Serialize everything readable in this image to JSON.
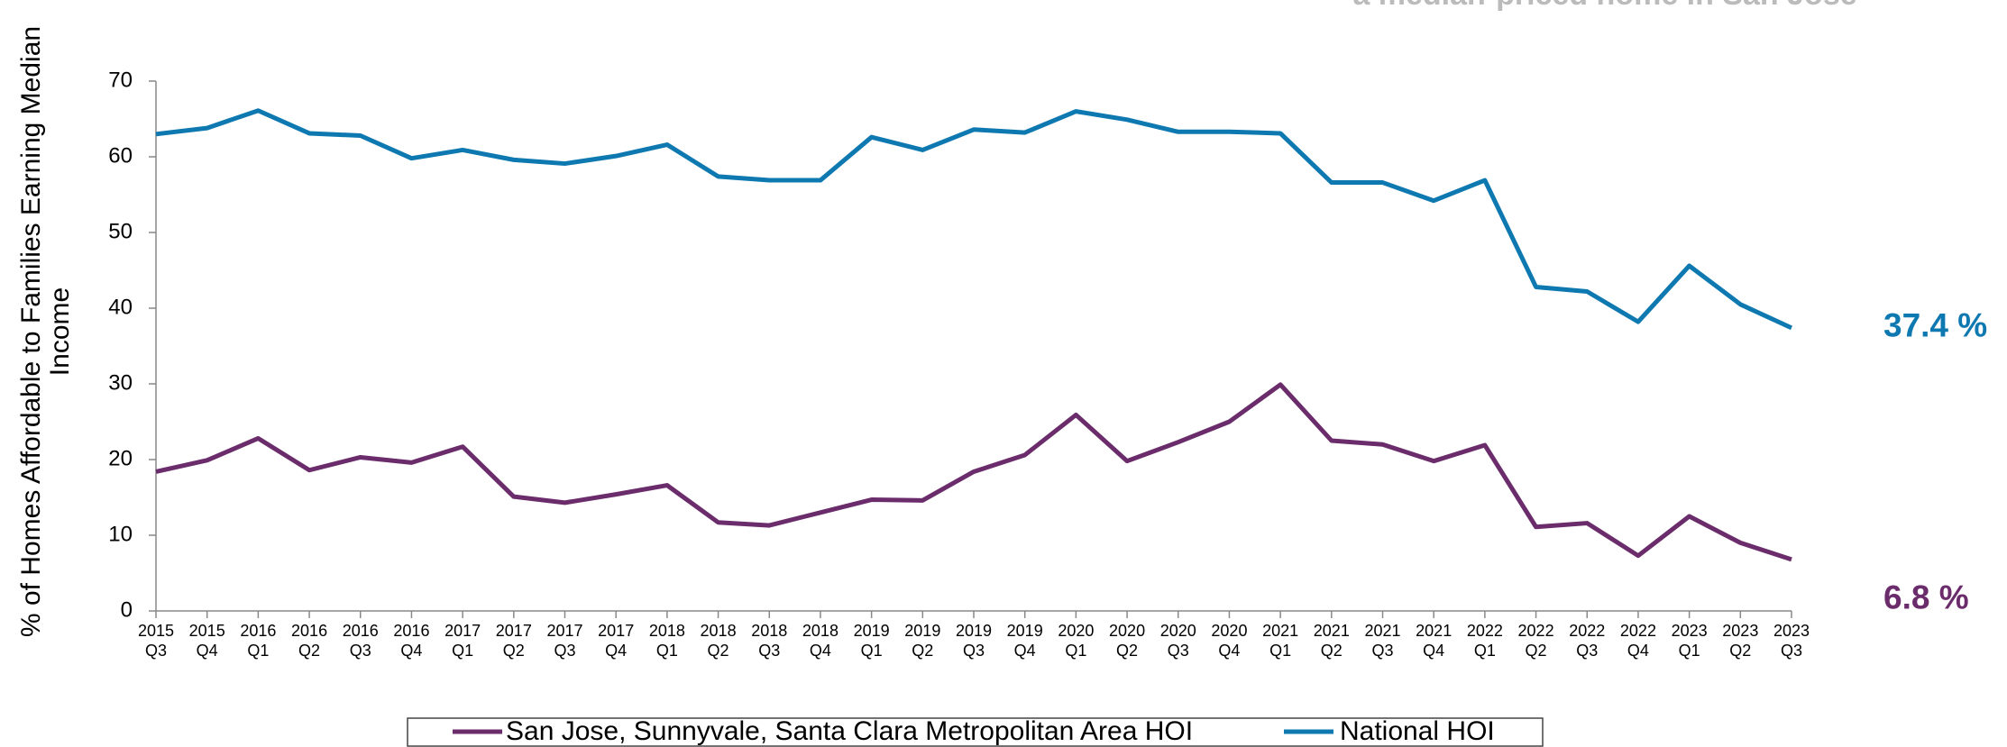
{
  "chart_data": {
    "type": "line",
    "annotation": "a median-priced home in San Jose",
    "ylabel": [
      "% of Homes Affordable to Families Earning Median",
      "Income"
    ],
    "categories": [
      [
        "2015",
        "Q3"
      ],
      [
        "2015",
        "Q4"
      ],
      [
        "2016",
        "Q1"
      ],
      [
        "2016",
        "Q2"
      ],
      [
        "2016",
        "Q3"
      ],
      [
        "2016",
        "Q4"
      ],
      [
        "2017",
        "Q1"
      ],
      [
        "2017",
        "Q2"
      ],
      [
        "2017",
        "Q3"
      ],
      [
        "2017",
        "Q4"
      ],
      [
        "2018",
        "Q1"
      ],
      [
        "2018",
        "Q2"
      ],
      [
        "2018",
        "Q3"
      ],
      [
        "2018",
        "Q4"
      ],
      [
        "2019",
        "Q1"
      ],
      [
        "2019",
        "Q2"
      ],
      [
        "2019",
        "Q3"
      ],
      [
        "2019",
        "Q4"
      ],
      [
        "2020",
        "Q1"
      ],
      [
        "2020",
        "Q2"
      ],
      [
        "2020",
        "Q3"
      ],
      [
        "2020",
        "Q4"
      ],
      [
        "2021",
        "Q1"
      ],
      [
        "2021",
        "Q2"
      ],
      [
        "2021",
        "Q3"
      ],
      [
        "2021",
        "Q4"
      ],
      [
        "2022",
        "Q1"
      ],
      [
        "2022",
        "Q2"
      ],
      [
        "2022",
        "Q3"
      ],
      [
        "2022",
        "Q4"
      ],
      [
        "2023",
        "Q1"
      ],
      [
        "2023",
        "Q2"
      ],
      [
        "2023",
        "Q3"
      ]
    ],
    "series": [
      {
        "name": "San Jose, Sunnyvale, Santa Clara Metropolitan Area HOI",
        "color": "#6b2c6b",
        "values": [
          18.4,
          19.9,
          22.8,
          18.6,
          20.3,
          19.6,
          21.7,
          15.1,
          14.3,
          15.4,
          16.6,
          11.7,
          11.3,
          13.0,
          14.7,
          14.6,
          18.4,
          20.6,
          25.9,
          19.8,
          22.3,
          25.0,
          29.9,
          22.5,
          22.0,
          19.8,
          21.9,
          11.1,
          11.6,
          7.3,
          12.5,
          9.0,
          6.8
        ],
        "value_labels": [
          null,
          null,
          null,
          null,
          null,
          null,
          null,
          null,
          null,
          null,
          null,
          null,
          null,
          null,
          null,
          null,
          null,
          null,
          null,
          null,
          null,
          null,
          null,
          null,
          null,
          null,
          null,
          null,
          null,
          null,
          null,
          null,
          "6.8 %"
        ]
      },
      {
        "name": "National HOI",
        "color": "#0e78b0",
        "values": [
          63.0,
          63.8,
          66.1,
          63.1,
          62.8,
          59.8,
          60.9,
          59.6,
          59.1,
          60.1,
          61.6,
          57.4,
          56.9,
          56.9,
          62.6,
          60.9,
          63.6,
          63.2,
          66.0,
          64.9,
          63.3,
          63.3,
          63.1,
          56.6,
          56.6,
          54.2,
          56.9,
          42.8,
          42.2,
          38.2,
          45.6,
          40.5,
          37.4
        ],
        "value_labels": [
          null,
          null,
          null,
          null,
          null,
          null,
          null,
          null,
          null,
          null,
          null,
          null,
          null,
          null,
          null,
          null,
          null,
          null,
          null,
          null,
          null,
          null,
          null,
          null,
          null,
          null,
          null,
          null,
          null,
          null,
          null,
          null,
          "37.4 %"
        ]
      }
    ],
    "ylim": [
      0,
      70
    ],
    "yticks": [
      0,
      10,
      20,
      30,
      40,
      50,
      60,
      70
    ],
    "grid": false,
    "legend": "bottom"
  }
}
